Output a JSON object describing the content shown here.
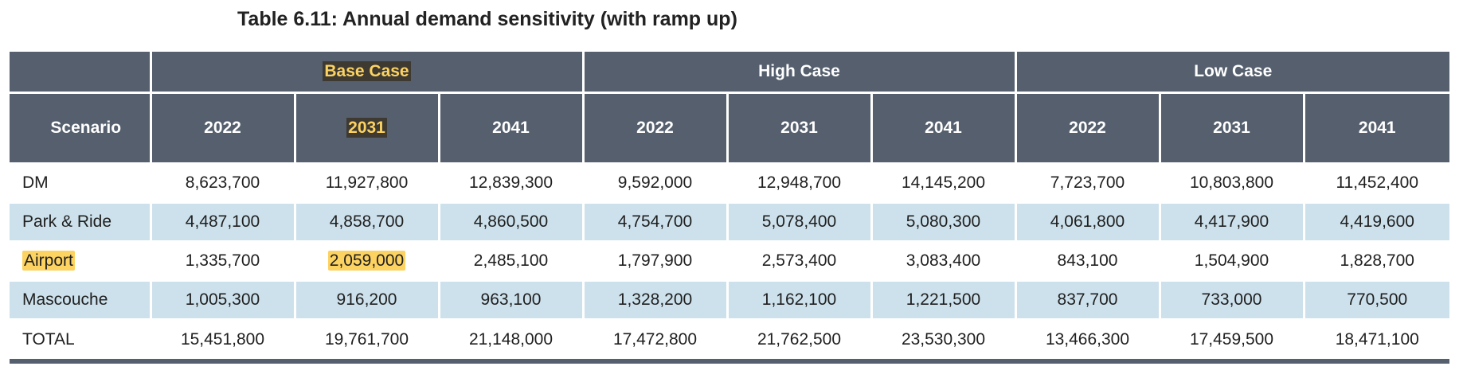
{
  "caption": "Table 6.11: Annual demand sensitivity (with ramp up)",
  "table": {
    "scenario_header": "Scenario",
    "groups": [
      "Base Case",
      "High Case",
      "Low Case"
    ],
    "years": [
      "2022",
      "2031",
      "2041",
      "2022",
      "2031",
      "2041",
      "2022",
      "2031",
      "2041"
    ],
    "rows": [
      {
        "label": "DM",
        "values": [
          "8,623,700",
          "11,927,800",
          "12,839,300",
          "9,592,000",
          "12,948,700",
          "14,145,200",
          "7,723,700",
          "10,803,800",
          "11,452,400"
        ]
      },
      {
        "label": "Park & Ride",
        "values": [
          "4,487,100",
          "4,858,700",
          "4,860,500",
          "4,754,700",
          "5,078,400",
          "5,080,300",
          "4,061,800",
          "4,417,900",
          "4,419,600"
        ]
      },
      {
        "label": "Airport",
        "values": [
          "1,335,700",
          "2,059,000",
          "2,485,100",
          "1,797,900",
          "2,573,400",
          "3,083,400",
          "843,100",
          "1,504,900",
          "1,828,700"
        ]
      },
      {
        "label": "Mascouche",
        "values": [
          "1,005,300",
          "916,200",
          "963,100",
          "1,328,200",
          "1,162,100",
          "1,221,500",
          "837,700",
          "733,000",
          "770,500"
        ]
      },
      {
        "label": "TOTAL",
        "values": [
          "15,451,800",
          "19,761,700",
          "21,148,000",
          "17,472,800",
          "21,762,500",
          "23,530,300",
          "13,466,300",
          "17,459,500",
          "18,471,100"
        ]
      }
    ]
  },
  "colors": {
    "header_bg": "#555f6d",
    "shaded_row_bg": "#cde1ec",
    "highlight_yellow": "#fcd261"
  }
}
